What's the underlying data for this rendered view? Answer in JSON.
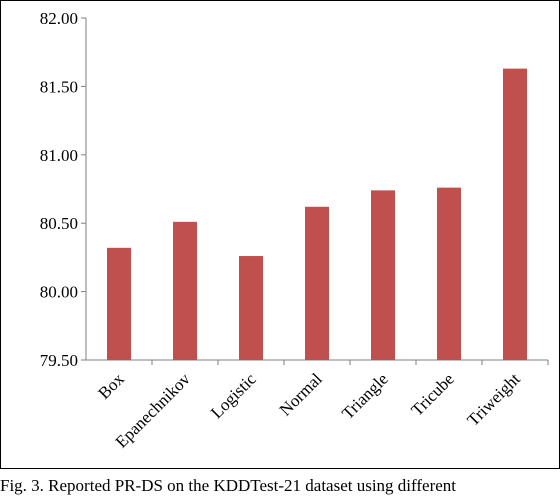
{
  "chart_data": {
    "type": "bar",
    "categories": [
      "Box",
      "Epanechnikov",
      "Logistic",
      "Normal",
      "Triangle",
      "Tricube",
      "Triweight"
    ],
    "values": [
      80.32,
      80.51,
      80.26,
      80.62,
      80.74,
      80.76,
      81.63
    ],
    "ylim": [
      79.5,
      82.0
    ],
    "yticks": [
      "79.50",
      "80.00",
      "80.50",
      "81.00",
      "81.50",
      "82.00"
    ],
    "grid": false,
    "legend": "none",
    "bar_color": "#c0504d",
    "title": "",
    "xlabel": "",
    "ylabel": ""
  },
  "caption": "Fig. 3. Reported PR-DS on the KDDTest-21 dataset using different"
}
